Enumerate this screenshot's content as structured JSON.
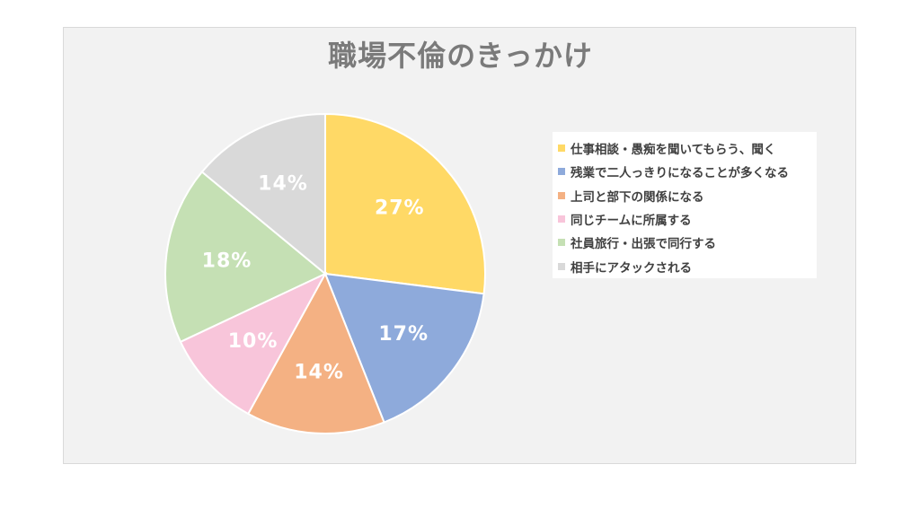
{
  "chart_data": {
    "type": "pie",
    "title": "職場不倫のきっかけ",
    "categories": [
      "仕事相談・愚痴を聞いてもらう、聞く",
      "残業で二人っきりになることが多くなる",
      "上司と部下の関係になる",
      "同じチームに所属する",
      "社員旅行・出張で同行する",
      "相手にアタックされる"
    ],
    "values": [
      27,
      17,
      14,
      10,
      18,
      14
    ],
    "value_labels": [
      "27%",
      "17%",
      "14%",
      "10%",
      "18%",
      "14%"
    ],
    "colors": [
      "#ffd966",
      "#8eaadb",
      "#f4b183",
      "#f8c5da",
      "#c5e0b4",
      "#d9d9d9"
    ],
    "legend_position": "right"
  }
}
